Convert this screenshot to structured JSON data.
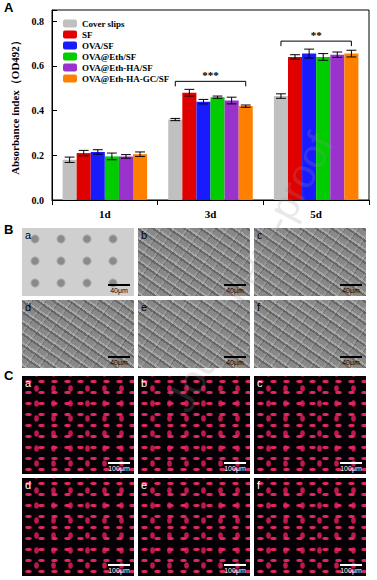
{
  "chart_data": {
    "type": "bar",
    "y_label": "Absorbance index（OD492）",
    "categories": [
      "1d",
      "3d",
      "5d"
    ],
    "series": [
      {
        "name": "Cover slips",
        "color": "#c0c0c0",
        "values": [
          0.18,
          0.36,
          0.465
        ],
        "errors": [
          0.012,
          0.005,
          0.01
        ]
      },
      {
        "name": "SF",
        "color": "#e00000",
        "values": [
          0.21,
          0.48,
          0.64
        ],
        "errors": [
          0.012,
          0.015,
          0.01
        ]
      },
      {
        "name": "OVA/SF",
        "color": "#1a1aff",
        "values": [
          0.215,
          0.44,
          0.655
        ],
        "errors": [
          0.01,
          0.01,
          0.02
        ]
      },
      {
        "name": "OVA@Eth/SF",
        "color": "#00cc00",
        "values": [
          0.195,
          0.46,
          0.64
        ],
        "errors": [
          0.015,
          0.005,
          0.015
        ]
      },
      {
        "name": "OVA@Eth-HA/SF",
        "color": "#9933cc",
        "values": [
          0.195,
          0.445,
          0.65
        ],
        "errors": [
          0.008,
          0.015,
          0.012
        ]
      },
      {
        "name": "OVA@Eth-HA-GC/SF",
        "color": "#ff8000",
        "values": [
          0.205,
          0.42,
          0.655
        ],
        "errors": [
          0.01,
          0.005,
          0.015
        ]
      }
    ],
    "ylim": [
      0,
      0.85
    ],
    "yticks": [
      {
        "value": 0,
        "label": "0.0"
      },
      {
        "value": 0.2,
        "label": "0.2"
      },
      {
        "value": 0.4,
        "label": "0.4"
      },
      {
        "value": 0.6,
        "label": "0.6"
      },
      {
        "value": 0.8,
        "label": "0.8"
      }
    ],
    "legend": "upper left",
    "grid": false,
    "annotations": [
      {
        "category": "3d",
        "text": "***"
      },
      {
        "category": "5d",
        "text": "**"
      }
    ]
  },
  "figure": {
    "panel_labels": [
      "A",
      "B",
      "C"
    ],
    "sem_images": {
      "labels": [
        "a",
        "b",
        "c",
        "d",
        "e",
        "f"
      ],
      "scale_bar": "40μm"
    },
    "fluorescence_images": {
      "labels": [
        "a",
        "b",
        "c",
        "d",
        "e",
        "f"
      ],
      "scale_bar": "100μm"
    },
    "watermark": "Journal Pre-proof"
  }
}
